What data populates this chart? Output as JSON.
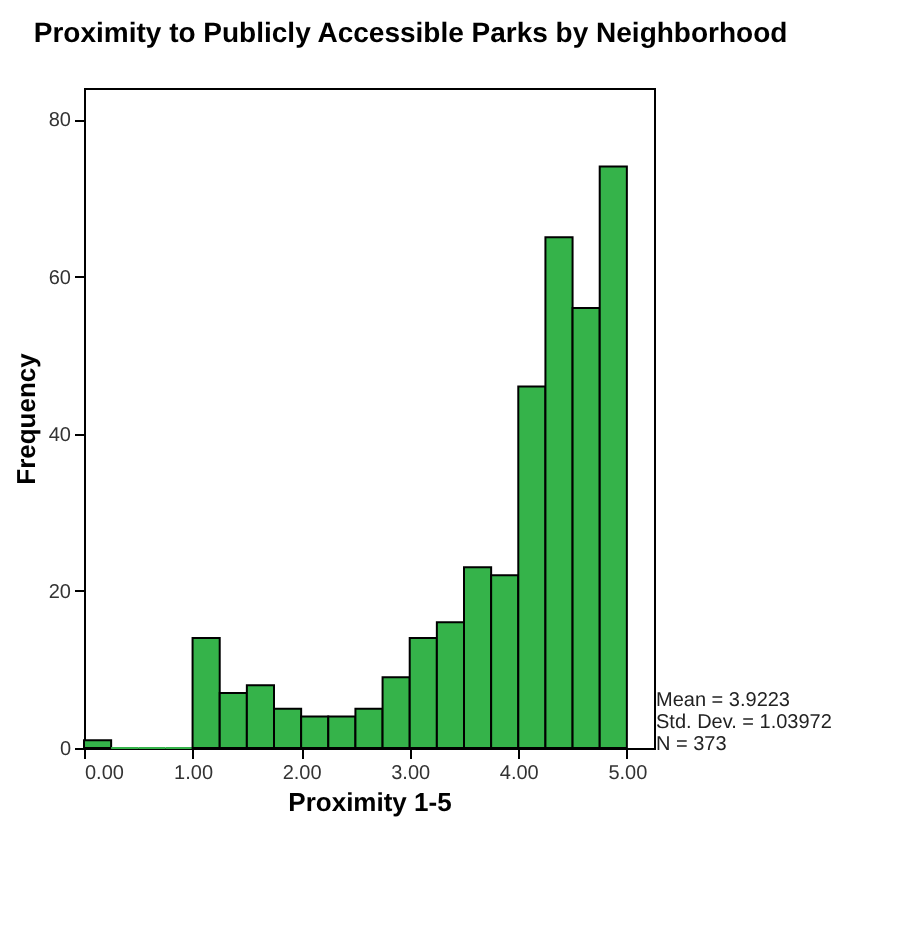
{
  "chart_data": {
    "type": "histogram",
    "title": "Proximity to Publicly Accessible Parks by Neighborhood",
    "xlabel": "Proximity 1-5",
    "ylabel": "Frequency",
    "bins": [
      0,
      0.25,
      0.5,
      0.75,
      1,
      1.25,
      1.5,
      1.75,
      2,
      2.25,
      2.5,
      2.75,
      3,
      3.25,
      3.5,
      3.75,
      4,
      4.25,
      4.5,
      4.75,
      5
    ],
    "values": [
      1,
      0,
      0,
      0,
      14,
      7,
      8,
      5,
      4,
      4,
      5,
      9,
      14,
      16,
      23,
      22,
      46,
      65,
      56,
      74
    ],
    "color": "#35b34a",
    "xlim": [
      0,
      5.25
    ],
    "xticks": [
      {
        "value": 0,
        "label": "0.00"
      },
      {
        "value": 1,
        "label": "1.00"
      },
      {
        "value": 2,
        "label": "2.00"
      },
      {
        "value": 3,
        "label": "3.00"
      },
      {
        "value": 4,
        "label": "4.00"
      },
      {
        "value": 5,
        "label": "5.00"
      }
    ],
    "ylim": [
      0,
      84
    ],
    "yticks": [
      0,
      20,
      40,
      60,
      80
    ],
    "annotations": [
      "Mean = 3.9223",
      "Std. Dev. = 1.03972",
      "N = 373"
    ]
  }
}
